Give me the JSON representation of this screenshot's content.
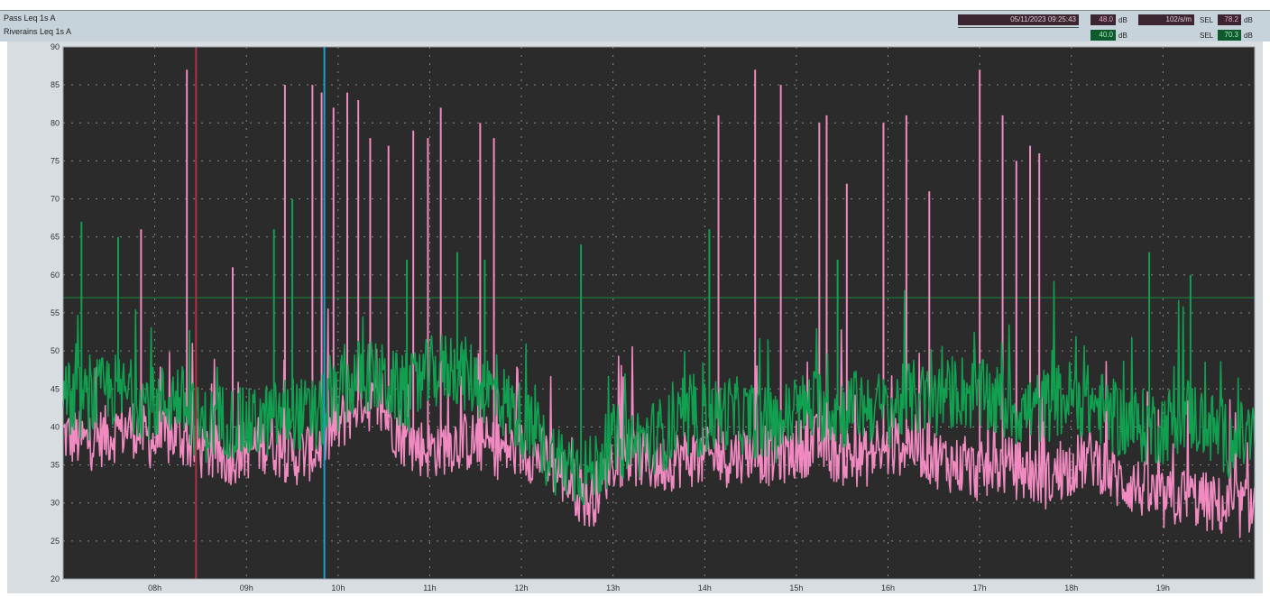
{
  "header": {
    "line1": "Pass   Leq 1s  A",
    "line2": "Riverains   Leq 1s  A",
    "datetime": "05/11/2023 09:25:43",
    "val_a": "48.0",
    "val_b": "40.0",
    "unit_db": "dB",
    "box_c": "102/s/m",
    "sel_label": "SEL",
    "sel_a": "78.2",
    "sel_b": "70.3"
  },
  "colors": {
    "background": "#2b2b2b",
    "series_pass": "#f08ac0",
    "series_riverains": "#10a050",
    "cursor_red": "#b03040",
    "cursor_cyan": "#18a0c8",
    "threshold_line": "#1f6b36",
    "header_bar": "#c7d3da"
  },
  "chart_data": {
    "type": "line",
    "x_unit": "hour",
    "x_range": [
      7,
      20
    ],
    "ylim": [
      20,
      90
    ],
    "grid": true,
    "y_ticks": [
      "20",
      "25",
      "30",
      "35",
      "40",
      "45",
      "50",
      "55",
      "60",
      "65",
      "70",
      "75",
      "80",
      "85",
      "90"
    ],
    "x_ticks": [
      "08h",
      "09h",
      "10h",
      "11h",
      "12h",
      "13h",
      "14h",
      "15h",
      "16h",
      "17h",
      "18h",
      "19h"
    ],
    "cursors": [
      {
        "name": "cursor-red",
        "x": 8.45
      },
      {
        "name": "cursor-cyan",
        "x": 9.85
      }
    ],
    "threshold": 57,
    "series": [
      {
        "name": "Pass",
        "x": [
          7.0,
          7.25,
          7.5,
          7.75,
          8.0,
          8.25,
          8.5,
          8.75,
          9.0,
          9.25,
          9.5,
          9.75,
          10.0,
          10.25,
          10.5,
          10.75,
          11.0,
          11.25,
          11.5,
          11.75,
          12.0,
          12.25,
          12.5,
          12.75,
          13.0,
          13.25,
          13.5,
          13.75,
          14.0,
          14.25,
          14.5,
          14.75,
          15.0,
          15.25,
          15.5,
          15.75,
          16.0,
          16.25,
          16.5,
          16.75,
          17.0,
          17.25,
          17.5,
          17.75,
          18.0,
          18.25,
          18.5,
          18.75,
          19.0,
          19.25,
          19.5,
          19.75,
          20.0
        ],
        "values": [
          39,
          38,
          39,
          40,
          38,
          39,
          37,
          36,
          37,
          38,
          36,
          37,
          40,
          44,
          42,
          38,
          37,
          38,
          38,
          37,
          37,
          36,
          33,
          30,
          36,
          36,
          35,
          36,
          36,
          36,
          37,
          36,
          37,
          38,
          36,
          36,
          37,
          38,
          36,
          35,
          34,
          35,
          34,
          33,
          35,
          36,
          33,
          32,
          30,
          31,
          30,
          29,
          30
        ],
        "peaks": [
          {
            "x": 7.85,
            "y": 66
          },
          {
            "x": 8.35,
            "y": 87
          },
          {
            "x": 8.85,
            "y": 61
          },
          {
            "x": 9.42,
            "y": 85
          },
          {
            "x": 9.72,
            "y": 85
          },
          {
            "x": 9.82,
            "y": 84
          },
          {
            "x": 9.95,
            "y": 82
          },
          {
            "x": 10.1,
            "y": 84
          },
          {
            "x": 10.22,
            "y": 83
          },
          {
            "x": 10.35,
            "y": 78
          },
          {
            "x": 10.55,
            "y": 77
          },
          {
            "x": 10.82,
            "y": 79
          },
          {
            "x": 10.98,
            "y": 78
          },
          {
            "x": 11.12,
            "y": 82
          },
          {
            "x": 11.55,
            "y": 80
          },
          {
            "x": 11.7,
            "y": 78
          },
          {
            "x": 14.15,
            "y": 81
          },
          {
            "x": 14.55,
            "y": 87
          },
          {
            "x": 14.83,
            "y": 85
          },
          {
            "x": 15.25,
            "y": 80
          },
          {
            "x": 15.33,
            "y": 81
          },
          {
            "x": 15.55,
            "y": 72
          },
          {
            "x": 15.95,
            "y": 80
          },
          {
            "x": 16.2,
            "y": 81
          },
          {
            "x": 16.45,
            "y": 71
          },
          {
            "x": 17.0,
            "y": 87
          },
          {
            "x": 17.25,
            "y": 81
          },
          {
            "x": 17.4,
            "y": 75
          },
          {
            "x": 17.55,
            "y": 77
          },
          {
            "x": 17.65,
            "y": 76
          }
        ]
      },
      {
        "name": "Riverains",
        "x": [
          7.0,
          7.25,
          7.5,
          7.75,
          8.0,
          8.25,
          8.5,
          8.75,
          9.0,
          9.25,
          9.5,
          9.75,
          10.0,
          10.25,
          10.5,
          10.75,
          11.0,
          11.25,
          11.5,
          11.75,
          12.0,
          12.25,
          12.5,
          12.75,
          13.0,
          13.25,
          13.5,
          13.75,
          14.0,
          14.25,
          14.5,
          14.75,
          15.0,
          15.25,
          15.5,
          15.75,
          16.0,
          16.25,
          16.5,
          16.75,
          17.0,
          17.25,
          17.5,
          17.75,
          18.0,
          18.25,
          18.5,
          18.75,
          19.0,
          19.25,
          19.5,
          19.75,
          20.0
        ],
        "values": [
          44,
          43,
          45,
          44,
          43,
          44,
          40,
          41,
          40,
          41,
          42,
          41,
          44,
          47,
          46,
          44,
          47,
          48,
          46,
          44,
          41,
          37,
          35,
          34,
          38,
          38,
          39,
          40,
          41,
          42,
          41,
          40,
          42,
          43,
          42,
          43,
          42,
          44,
          43,
          45,
          44,
          43,
          42,
          43,
          44,
          43,
          41,
          40,
          40,
          42,
          40,
          38,
          39
        ],
        "peaks": [
          {
            "x": 7.2,
            "y": 67
          },
          {
            "x": 7.6,
            "y": 65
          },
          {
            "x": 9.3,
            "y": 66
          },
          {
            "x": 9.5,
            "y": 70
          },
          {
            "x": 10.75,
            "y": 62
          },
          {
            "x": 11.3,
            "y": 63
          },
          {
            "x": 11.6,
            "y": 62
          },
          {
            "x": 12.65,
            "y": 64
          },
          {
            "x": 14.05,
            "y": 66
          },
          {
            "x": 15.45,
            "y": 62
          },
          {
            "x": 18.85,
            "y": 63
          },
          {
            "x": 19.3,
            "y": 60
          }
        ]
      }
    ]
  }
}
